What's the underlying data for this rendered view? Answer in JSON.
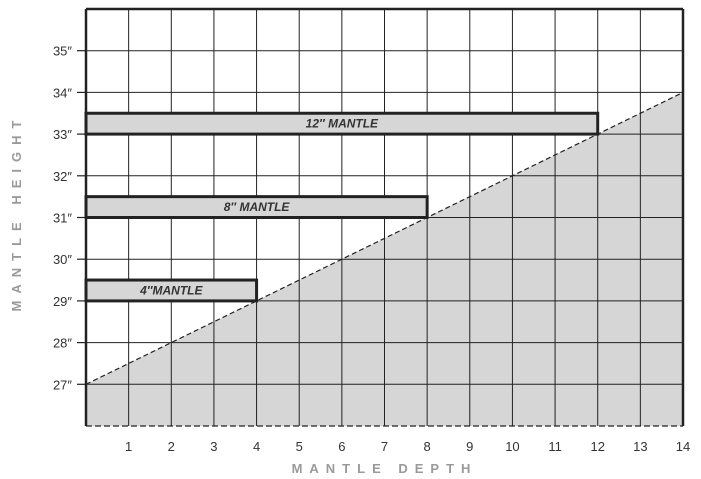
{
  "chart_data": {
    "type": "bar",
    "orientation": "horizontal",
    "xlabel": "MANTLE DEPTH",
    "ylabel": "MANTLE HEIGHT",
    "xlim": [
      0,
      14
    ],
    "ylim": [
      26,
      36
    ],
    "x_ticks": [
      "1",
      "2",
      "3",
      "4",
      "5",
      "6",
      "7",
      "8",
      "9",
      "10",
      "11",
      "12",
      "13",
      "14"
    ],
    "y_ticks": [
      "27″",
      "28″",
      "29″",
      "30″",
      "31″",
      "32″",
      "33″",
      "34″",
      "35″"
    ],
    "grid": true,
    "bars": [
      {
        "label": "4″MANTLE",
        "depth": 4,
        "height_min": 29,
        "height_max": 29.5
      },
      {
        "label": "8″ MANTLE",
        "depth": 8,
        "height_min": 31,
        "height_max": 31.5
      },
      {
        "label": "12″ MANTLE",
        "depth": 12,
        "height_min": 33,
        "height_max": 33.5
      }
    ],
    "clearance_line": {
      "x": [
        0,
        14
      ],
      "y": [
        27,
        34
      ],
      "style": "dashed",
      "shaded": "below"
    },
    "colors": {
      "bar_fill": "#d6d6d6",
      "shade_fill": "#d6d6d6",
      "grid": "#222222",
      "border": "#222222",
      "axis_title": "#9a9a9a"
    }
  }
}
